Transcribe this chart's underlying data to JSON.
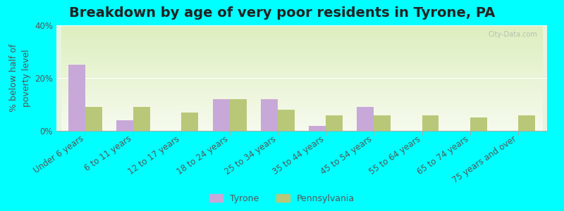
{
  "title": "Breakdown by age of very poor residents in Tyrone, PA",
  "ylabel": "% below half of\npoverty level",
  "categories": [
    "Under 6 years",
    "6 to 11 years",
    "12 to 17 years",
    "18 to 24 years",
    "25 to 34 years",
    "35 to 44 years",
    "45 to 54 years",
    "55 to 64 years",
    "65 to 74 years",
    "75 years and over"
  ],
  "tyrone_values": [
    25,
    4,
    0,
    12,
    12,
    2,
    9,
    0,
    0,
    0
  ],
  "pennsylvania_values": [
    9,
    9,
    7,
    12,
    8,
    6,
    6,
    6,
    5,
    6
  ],
  "tyrone_color": "#c8a8d8",
  "pennsylvania_color": "#b8c878",
  "ylim": [
    0,
    40
  ],
  "yticks": [
    0,
    20,
    40
  ],
  "ytick_labels": [
    "0%",
    "20%",
    "40%"
  ],
  "background_color": "#00ffff",
  "plot_bg_top": "#e8f0d8",
  "plot_bg_bottom": "#f0f8e0",
  "bar_width": 0.35,
  "legend_labels": [
    "Tyrone",
    "Pennsylvania"
  ],
  "title_fontsize": 14,
  "axis_label_fontsize": 9,
  "tick_fontsize": 8.5,
  "watermark": "City-Data.com"
}
